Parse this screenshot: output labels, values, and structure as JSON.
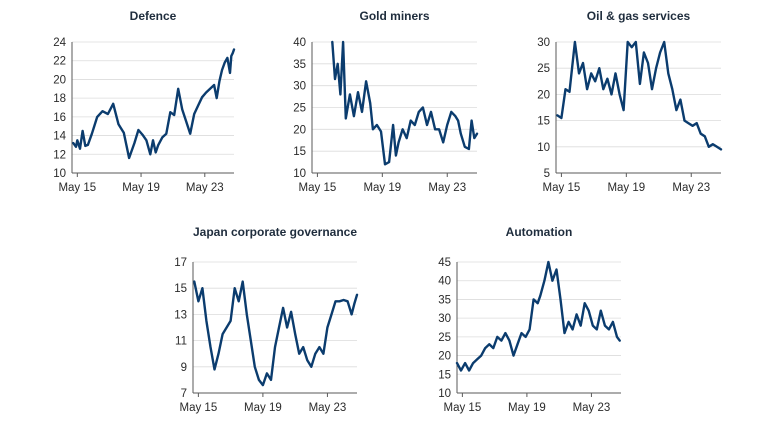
{
  "chart_data": [
    {
      "type": "line",
      "title": "Defence",
      "x": [
        "2015-02",
        "2015-04",
        "2015-05",
        "2015-07",
        "2015-09",
        "2015-11",
        "2016-01",
        "2016-04",
        "2016-08",
        "2016-12",
        "2017-04",
        "2017-08",
        "2017-12",
        "2018-04",
        "2018-08",
        "2018-12",
        "2019-03",
        "2019-06",
        "2019-09",
        "2019-12",
        "2020-02",
        "2020-04",
        "2020-06",
        "2020-09",
        "2020-12",
        "2021-03",
        "2021-06",
        "2021-09",
        "2021-12",
        "2022-03",
        "2022-06",
        "2022-09",
        "2022-12",
        "2023-03",
        "2023-06",
        "2023-09",
        "2023-12",
        "2024-02",
        "2024-04",
        "2024-06",
        "2024-08",
        "2024-10",
        "2024-12",
        "2025-01",
        "2025-02",
        "2025-03"
      ],
      "values": [
        13.2,
        12.8,
        13.5,
        12.6,
        14.5,
        12.9,
        13.0,
        14.2,
        16.0,
        16.6,
        16.3,
        17.4,
        15.2,
        14.3,
        11.6,
        13.2,
        14.6,
        14.1,
        13.5,
        12.0,
        13.5,
        12.2,
        13.0,
        13.8,
        14.2,
        16.5,
        16.2,
        19.0,
        16.8,
        15.5,
        14.2,
        16.3,
        17.2,
        18.1,
        18.6,
        19.0,
        19.4,
        18.0,
        19.8,
        21.0,
        21.8,
        22.3,
        20.7,
        22.5,
        22.8,
        23.2
      ],
      "xticks": [
        "May 15",
        "May 19",
        "May 23"
      ],
      "xtick_values": [
        "2015-05",
        "2019-05",
        "2023-05"
      ],
      "yticks": [
        "24",
        "22",
        "20",
        "18",
        "16",
        "14",
        "12",
        "10"
      ],
      "ylim": [
        10,
        24
      ]
    },
    {
      "type": "line",
      "title": "Gold miners",
      "x": [
        "2016-04",
        "2016-06",
        "2016-08",
        "2016-10",
        "2016-12",
        "2017-02",
        "2017-05",
        "2017-08",
        "2017-11",
        "2018-02",
        "2018-05",
        "2018-08",
        "2018-10",
        "2019-01",
        "2019-04",
        "2019-07",
        "2019-10",
        "2020-01",
        "2020-03",
        "2020-05",
        "2020-08",
        "2020-11",
        "2021-02",
        "2021-05",
        "2021-08",
        "2021-11",
        "2022-02",
        "2022-05",
        "2022-08",
        "2022-11",
        "2023-02",
        "2023-05",
        "2023-08",
        "2023-11",
        "2024-01",
        "2024-03",
        "2024-06",
        "2024-09",
        "2024-11",
        "2025-01",
        "2025-03"
      ],
      "values": [
        40,
        31.5,
        35,
        28,
        40,
        22.5,
        28,
        23,
        28.5,
        24,
        31,
        26,
        20,
        21,
        19.5,
        12,
        12.5,
        21,
        14,
        17,
        20,
        18,
        22,
        21,
        24,
        25,
        21,
        24,
        20,
        20,
        17,
        21,
        24,
        23,
        22,
        19,
        16,
        15.5,
        22,
        18,
        19
      ],
      "xticks": [
        "May 15",
        "May 19",
        "May 23"
      ],
      "xtick_values": [
        "2015-05",
        "2019-05",
        "2023-05"
      ],
      "yticks": [
        "40",
        "35",
        "30",
        "25",
        "20",
        "15",
        "10"
      ],
      "ylim": [
        10,
        40
      ]
    },
    {
      "type": "line",
      "title": "Oil & gas services",
      "x": [
        "2015-02",
        "2015-05",
        "2015-08",
        "2015-11",
        "2016-03",
        "2016-06",
        "2016-09",
        "2016-12",
        "2017-03",
        "2017-06",
        "2017-09",
        "2017-12",
        "2018-03",
        "2018-06",
        "2018-09",
        "2018-12",
        "2019-03",
        "2019-06",
        "2019-09",
        "2019-12",
        "2020-03",
        "2020-06",
        "2020-09",
        "2020-12",
        "2021-03",
        "2021-06",
        "2021-09",
        "2021-12",
        "2022-03",
        "2022-06",
        "2022-09",
        "2022-12",
        "2023-03",
        "2023-06",
        "2023-09",
        "2023-12",
        "2024-03",
        "2024-06",
        "2024-09",
        "2024-12",
        "2025-03"
      ],
      "values": [
        16,
        15.5,
        21,
        20.5,
        30,
        24,
        26,
        21,
        24,
        22.5,
        25,
        21,
        23,
        20,
        24,
        20,
        17,
        30,
        29,
        30,
        22,
        28,
        26,
        21,
        25,
        28,
        30,
        24,
        21,
        17,
        19,
        15,
        14.5,
        14,
        14.5,
        12.5,
        12,
        10,
        10.5,
        10,
        9.5
      ],
      "xticks": [
        "May 15",
        "May 19",
        "May 23"
      ],
      "xtick_values": [
        "2015-05",
        "2019-05",
        "2023-05"
      ],
      "yticks": [
        "30",
        "25",
        "20",
        "15",
        "10",
        "5"
      ],
      "ylim": [
        5,
        30
      ]
    },
    {
      "type": "line",
      "title": "Japan corporate governance",
      "x": [
        "2015-02",
        "2015-05",
        "2015-08",
        "2015-11",
        "2016-02",
        "2016-05",
        "2016-08",
        "2016-11",
        "2017-02",
        "2017-05",
        "2017-08",
        "2017-11",
        "2018-02",
        "2018-05",
        "2018-08",
        "2018-11",
        "2019-02",
        "2019-05",
        "2019-08",
        "2019-11",
        "2020-02",
        "2020-05",
        "2020-08",
        "2020-11",
        "2021-02",
        "2021-05",
        "2021-08",
        "2021-11",
        "2022-02",
        "2022-05",
        "2022-08",
        "2022-11",
        "2023-02",
        "2023-05",
        "2023-08",
        "2023-11",
        "2024-02",
        "2024-05",
        "2024-08",
        "2024-11",
        "2025-01",
        "2025-03"
      ],
      "values": [
        15.5,
        14,
        15,
        12.5,
        10.5,
        8.8,
        10,
        11.5,
        12,
        12.5,
        15,
        14,
        15.5,
        13,
        11,
        9,
        8,
        7.6,
        8.5,
        8,
        10.5,
        12,
        13.5,
        12,
        13.2,
        11.5,
        10,
        10.5,
        9.5,
        9,
        10,
        10.5,
        10,
        12,
        13,
        14,
        14,
        14.1,
        14,
        13,
        13.8,
        14.5
      ],
      "xticks": [
        "May 15",
        "May 19",
        "May 23"
      ],
      "xtick_values": [
        "2015-05",
        "2019-05",
        "2023-05"
      ],
      "yticks": [
        "17",
        "15",
        "13",
        "11",
        "9",
        "7"
      ],
      "ylim": [
        7,
        17
      ]
    },
    {
      "type": "line",
      "title": "Automation",
      "x": [
        "2015-01",
        "2015-04",
        "2015-07",
        "2015-10",
        "2016-01",
        "2016-04",
        "2016-07",
        "2016-10",
        "2017-01",
        "2017-04",
        "2017-07",
        "2017-10",
        "2018-01",
        "2018-04",
        "2018-07",
        "2018-10",
        "2019-01",
        "2019-04",
        "2019-07",
        "2019-10",
        "2020-01",
        "2020-03",
        "2020-06",
        "2020-09",
        "2020-12",
        "2021-03",
        "2021-06",
        "2021-09",
        "2021-12",
        "2022-03",
        "2022-06",
        "2022-09",
        "2022-12",
        "2023-03",
        "2023-06",
        "2023-09",
        "2023-12",
        "2024-03",
        "2024-06",
        "2024-09",
        "2024-12",
        "2025-02"
      ],
      "values": [
        18,
        16,
        18,
        16,
        18,
        19,
        20,
        22,
        23,
        22,
        25,
        24,
        26,
        24,
        20,
        23,
        26,
        25,
        27,
        35,
        34,
        36,
        40,
        45,
        40,
        43,
        35,
        26,
        29,
        27,
        31,
        28,
        34,
        32,
        28,
        27,
        32,
        28,
        27,
        29,
        25,
        24
      ],
      "xticks": [
        "May 15",
        "May 19",
        "May 23"
      ],
      "xtick_values": [
        "2015-05",
        "2019-05",
        "2023-05"
      ],
      "yticks": [
        "45",
        "40",
        "35",
        "30",
        "25",
        "20",
        "15",
        "10"
      ],
      "ylim": [
        10,
        45
      ]
    }
  ]
}
